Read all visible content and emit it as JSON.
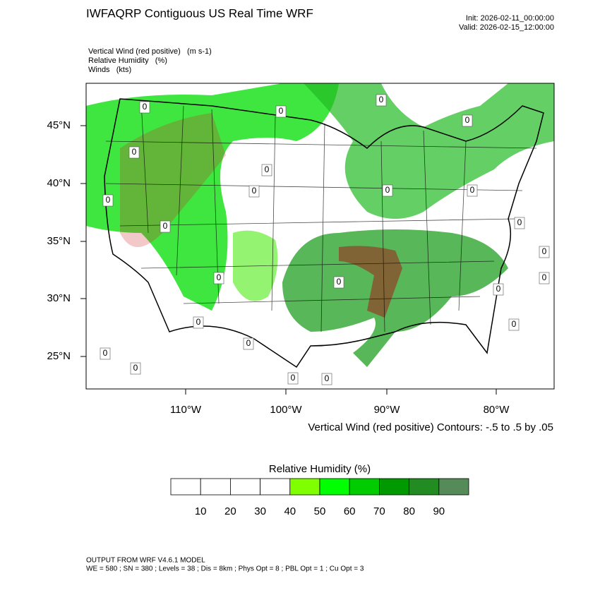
{
  "header": {
    "title": "IWFAQRP Contiguous US Real Time WRF",
    "init": "Init: 2026-02-11_00:00:00",
    "valid": "Valid: 2026-02-15_12:00:00"
  },
  "fields": [
    "Vertical Wind (red positive)   (m s-1)",
    "Relative Humidity   (%)",
    "Winds   (kts)"
  ],
  "map": {
    "lat_labels": [
      "45°N",
      "40°N",
      "35°N",
      "30°N",
      "25°N"
    ],
    "lon_labels": [
      "110°W",
      "100°W",
      "90°W",
      "80°W"
    ],
    "contour_label": "0",
    "contour_note": "Vertical Wind (red positive) Contours: -.5 to .5 by .05"
  },
  "colorbar": {
    "title": "Relative Humidity  (%)",
    "labels": [
      "10",
      "20",
      "30",
      "40",
      "50",
      "60",
      "70",
      "80",
      "90"
    ],
    "colors": [
      "#ffffff",
      "#ffffff",
      "#ffffff",
      "#ffffff",
      "#80ff00",
      "#00ff00",
      "#00cc00",
      "#009900",
      "#228b22",
      "#548b58"
    ]
  },
  "footer": {
    "model": "OUTPUT FROM WRF V4.6.1 MODEL",
    "settings": "WE = 580 ; SN = 380 ; Levels = 38 ; Dis = 8km ; Phys Opt = 8 ; PBL Opt = 1 ; Cu Opt = 3"
  }
}
